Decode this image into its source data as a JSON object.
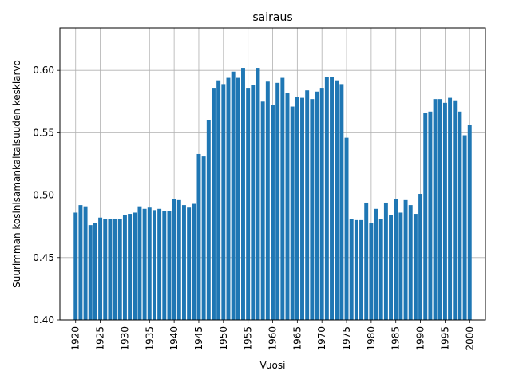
{
  "chart_data": {
    "type": "bar",
    "title": "sairaus",
    "xlabel": "Vuosi",
    "ylabel": "Suurimman kosinisamankaltaisuuden keskiarvo",
    "x": [
      1920,
      1921,
      1922,
      1923,
      1924,
      1925,
      1926,
      1927,
      1928,
      1929,
      1930,
      1931,
      1932,
      1933,
      1934,
      1935,
      1936,
      1937,
      1938,
      1939,
      1940,
      1941,
      1942,
      1943,
      1944,
      1945,
      1946,
      1947,
      1948,
      1949,
      1950,
      1951,
      1952,
      1953,
      1954,
      1955,
      1956,
      1957,
      1958,
      1959,
      1960,
      1961,
      1962,
      1963,
      1964,
      1965,
      1966,
      1967,
      1968,
      1969,
      1970,
      1971,
      1972,
      1973,
      1974,
      1975,
      1976,
      1977,
      1978,
      1979,
      1980,
      1981,
      1982,
      1983,
      1984,
      1985,
      1986,
      1987,
      1988,
      1989,
      1990,
      1991,
      1992,
      1993,
      1994,
      1995,
      1996,
      1997,
      1998,
      1999,
      2000
    ],
    "values": [
      0.486,
      0.492,
      0.491,
      0.476,
      0.478,
      0.482,
      0.481,
      0.481,
      0.481,
      0.481,
      0.484,
      0.485,
      0.486,
      0.491,
      0.489,
      0.49,
      0.488,
      0.489,
      0.487,
      0.487,
      0.497,
      0.496,
      0.492,
      0.49,
      0.493,
      0.533,
      0.531,
      0.56,
      0.586,
      0.592,
      0.589,
      0.594,
      0.599,
      0.594,
      0.602,
      0.586,
      0.588,
      0.602,
      0.575,
      0.591,
      0.572,
      0.59,
      0.594,
      0.582,
      0.571,
      0.579,
      0.578,
      0.584,
      0.577,
      0.583,
      0.586,
      0.595,
      0.595,
      0.592,
      0.589,
      0.546,
      0.481,
      0.48,
      0.48,
      0.494,
      0.478,
      0.489,
      0.481,
      0.494,
      0.484,
      0.497,
      0.486,
      0.496,
      0.492,
      0.485,
      0.501,
      0.566,
      0.567,
      0.577,
      0.577,
      0.574,
      0.578,
      0.576,
      0.567,
      0.548,
      0.556
    ],
    "xticks": [
      1920,
      1925,
      1930,
      1935,
      1940,
      1945,
      1950,
      1955,
      1960,
      1965,
      1970,
      1975,
      1980,
      1985,
      1990,
      1995,
      2000
    ],
    "yticks": [
      "0.40",
      "0.45",
      "0.50",
      "0.55",
      "0.60"
    ],
    "ylim": [
      0.4,
      0.634
    ],
    "xlim": [
      1916.8,
      2003.2
    ],
    "grid": true,
    "bar_color": "#1f77b4"
  }
}
